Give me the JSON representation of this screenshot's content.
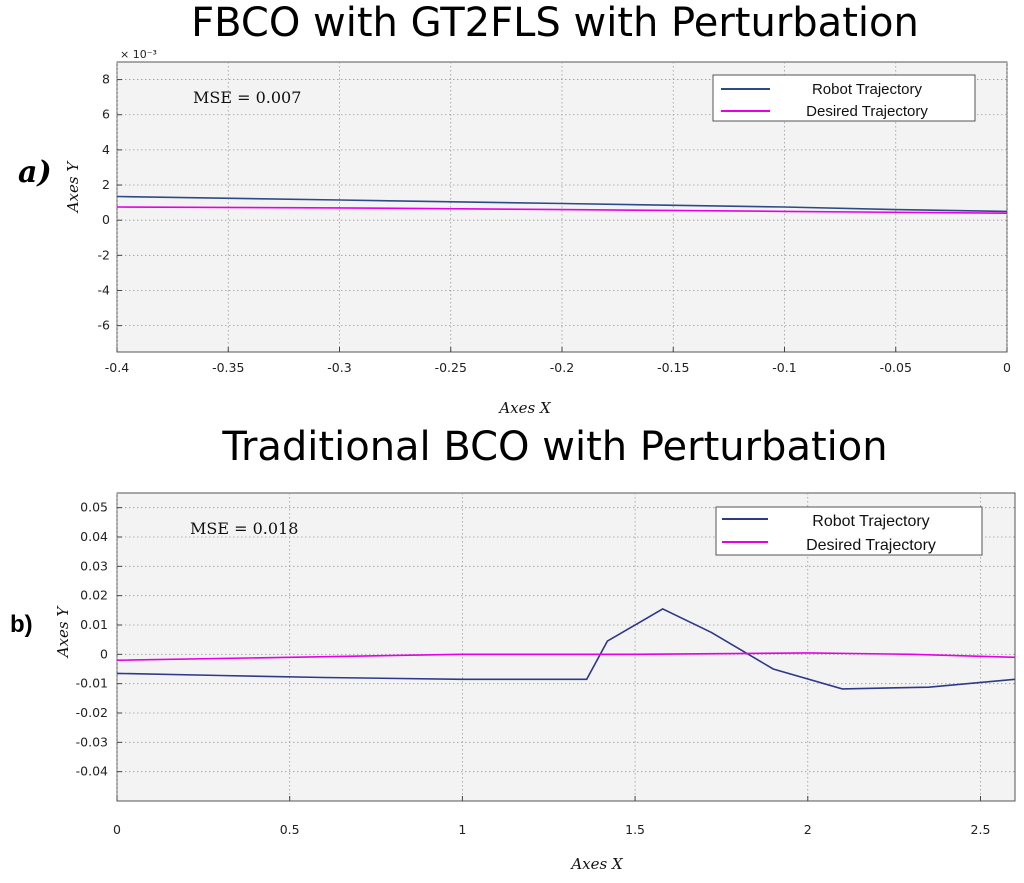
{
  "chart_data": [
    {
      "type": "line",
      "panel_label": "a)",
      "title": "FBCO with GT2FLS with Perturbation",
      "xlabel": "Axes X",
      "ylabel": "Axes Y",
      "annotation": "MSE = 0.007",
      "y_exponent": "× 10⁻³",
      "xlim": [
        -0.4,
        0.0
      ],
      "ylim": [
        -7.5,
        9
      ],
      "x_ticks": [
        -0.4,
        -0.35,
        -0.3,
        -0.25,
        -0.2,
        -0.15,
        -0.1,
        -0.05,
        0
      ],
      "x_tick_labels": [
        "-0.4",
        "-0.35",
        "-0.3",
        "-0.25",
        "-0.2",
        "-0.15",
        "-0.1",
        "-0.05",
        "0"
      ],
      "y_ticks": [
        -6,
        -4,
        -2,
        0,
        2,
        4,
        6,
        8
      ],
      "y_tick_labels": [
        "-6",
        "-4",
        "-2",
        "0",
        "2",
        "4",
        "6",
        "8"
      ],
      "grid": true,
      "legend_position": "top-right",
      "colors": {
        "robot": "#2e4a86",
        "desired": "#e600e6"
      },
      "series": [
        {
          "name": "Robot Trajectory",
          "x": [
            -0.4,
            -0.3,
            -0.2,
            -0.1,
            -0.05,
            0.0
          ],
          "y": [
            1.35,
            1.15,
            0.95,
            0.75,
            0.6,
            0.5
          ]
        },
        {
          "name": "Desired Trajectory",
          "x": [
            -0.4,
            -0.3,
            -0.2,
            -0.1,
            0.0
          ],
          "y": [
            0.75,
            0.7,
            0.6,
            0.5,
            0.4
          ]
        }
      ]
    },
    {
      "type": "line",
      "panel_label": "b)",
      "title": "Traditional BCO with Perturbation",
      "xlabel": "Axes X",
      "ylabel": "Axes Y",
      "annotation": "MSE = 0.018",
      "xlim": [
        0,
        2.6
      ],
      "ylim": [
        -0.05,
        0.055
      ],
      "x_ticks": [
        0,
        0.5,
        1,
        1.5,
        2,
        2.5
      ],
      "x_tick_labels": [
        "0",
        "0.5",
        "1",
        "1.5",
        "2",
        "2.5"
      ],
      "y_ticks": [
        -0.04,
        -0.03,
        -0.02,
        -0.01,
        0,
        0.01,
        0.02,
        0.03,
        0.04,
        0.05
      ],
      "y_tick_labels": [
        "-0.04",
        "-0.03",
        "-0.02",
        "-0.01",
        "0",
        "0.01",
        "0.02",
        "0.03",
        "0.04",
        "0.05"
      ],
      "grid": true,
      "legend_position": "top-right",
      "colors": {
        "robot": "#2e3a86",
        "desired": "#e600e6"
      },
      "series": [
        {
          "name": "Robot Trajectory",
          "x": [
            0,
            0.3,
            0.6,
            1.0,
            1.36,
            1.42,
            1.58,
            1.72,
            1.9,
            2.1,
            2.35,
            2.6
          ],
          "y": [
            -0.0065,
            -0.0072,
            -0.0079,
            -0.0085,
            -0.0085,
            0.0045,
            0.0155,
            0.0075,
            -0.005,
            -0.0118,
            -0.0112,
            -0.0085
          ]
        },
        {
          "name": "Desired Trajectory",
          "x": [
            0,
            0.5,
            1.0,
            1.5,
            2.0,
            2.3,
            2.6
          ],
          "y": [
            -0.002,
            -0.001,
            0.0,
            0.0,
            0.0005,
            0.0,
            -0.001
          ]
        }
      ]
    }
  ]
}
